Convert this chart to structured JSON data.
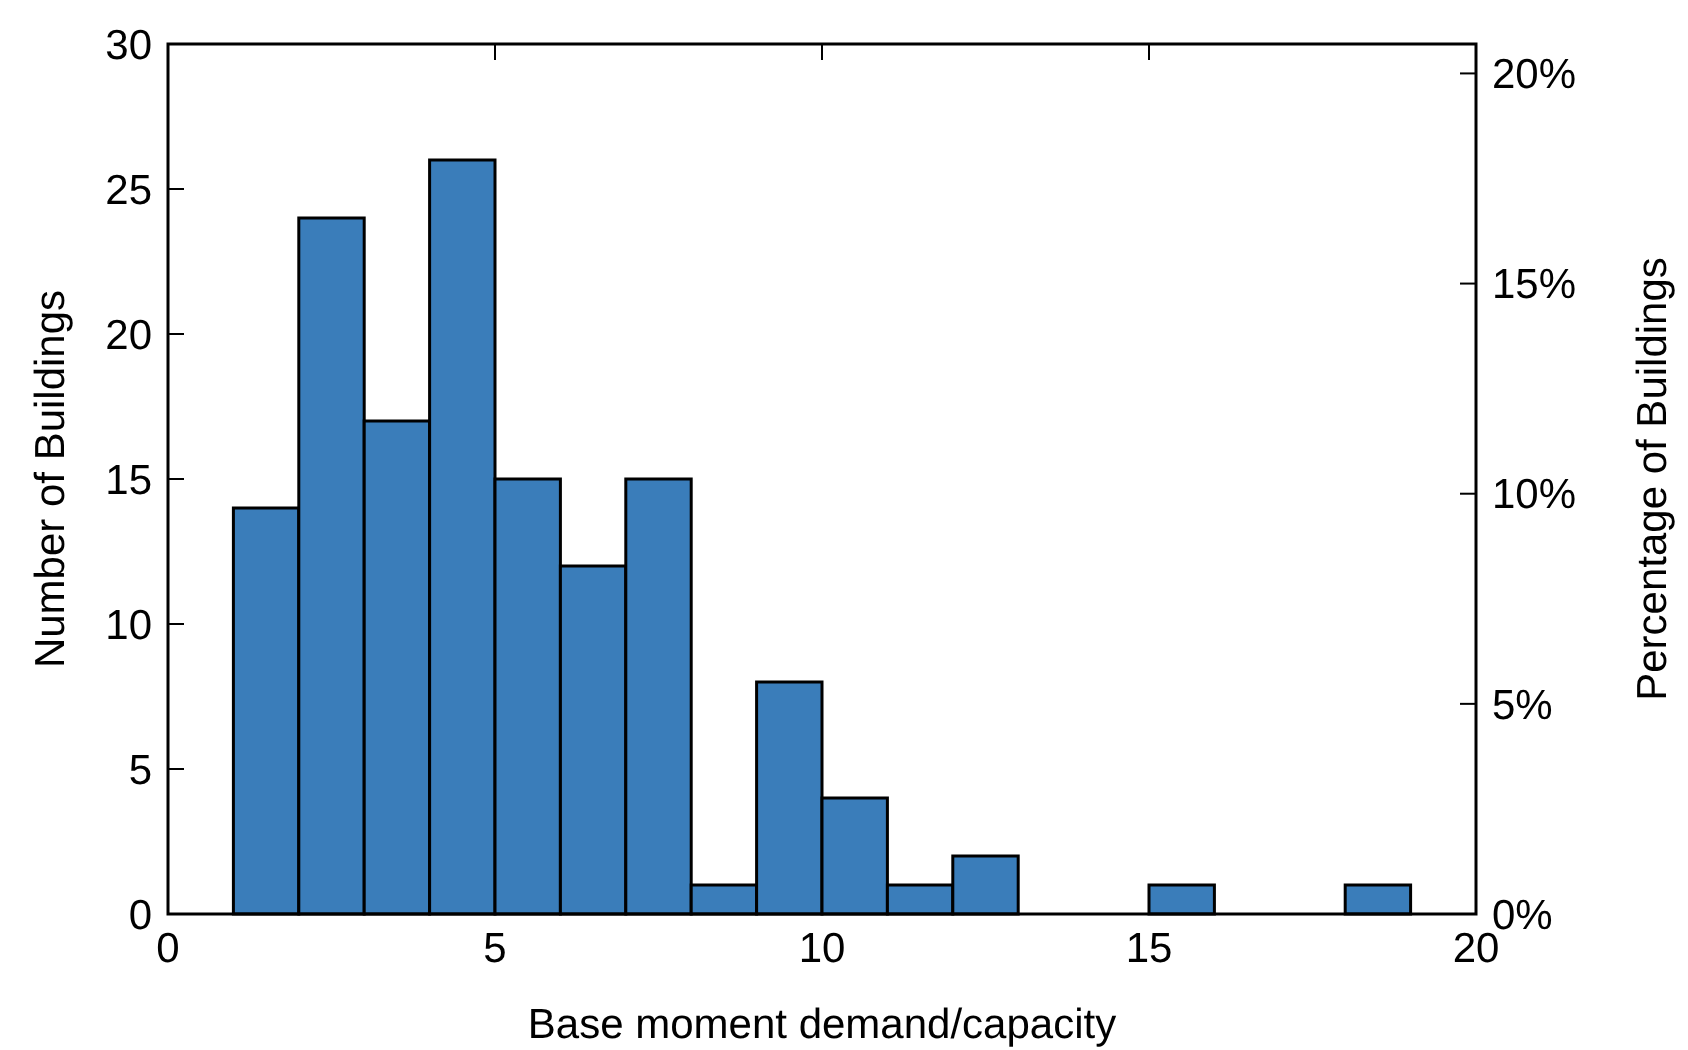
{
  "chart_data": {
    "type": "histogram",
    "xlabel": "Base moment demand/capacity",
    "ylabel": "Number of Buildings",
    "y2label": "Percentage of Buildings",
    "bins": [
      1,
      2,
      3,
      4,
      5,
      6,
      7,
      8,
      9,
      10,
      11,
      12,
      13,
      14,
      15,
      16,
      17,
      18,
      19
    ],
    "values": [
      14,
      24,
      17,
      26,
      15,
      12,
      15,
      1,
      8,
      4,
      1,
      2,
      0,
      0,
      1,
      0,
      0,
      1
    ],
    "color": "#3a7dba",
    "xlim": [
      0,
      20
    ],
    "xticks": [
      0,
      5,
      10,
      15,
      20
    ],
    "ylim": [
      0,
      30
    ],
    "yticks": [
      0,
      5,
      10,
      15,
      20,
      25,
      30
    ],
    "y2lim": [
      0,
      20.7
    ],
    "y2ticks": [
      {
        "value": 0,
        "label": "0%"
      },
      {
        "value": 5,
        "label": "5%"
      },
      {
        "value": 10,
        "label": "10%"
      },
      {
        "value": 15,
        "label": "15%"
      },
      {
        "value": 20,
        "label": "20%"
      }
    ],
    "grid": false
  }
}
